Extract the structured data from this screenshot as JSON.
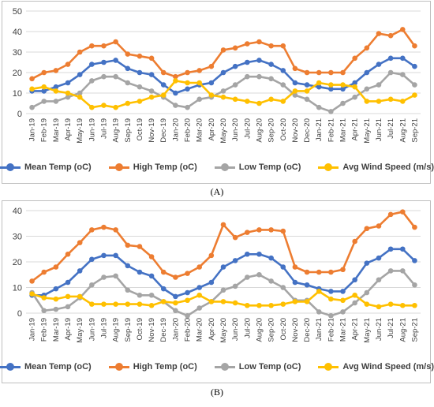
{
  "chart_data": [
    {
      "type": "line",
      "caption": "(A)",
      "categories": [
        "Jan-19",
        "Feb-19",
        "Mar-19",
        "Apr-19",
        "May-19",
        "Jun-19",
        "Jul-19",
        "Aug-19",
        "Sep-19",
        "Oct-19",
        "Nov-19",
        "Dec-19",
        "Jan-20",
        "Feb-20",
        "Mar-20",
        "Apr-20",
        "May-20",
        "Jun-20",
        "Jul-20",
        "Aug-20",
        "Sep-20",
        "Oct-20",
        "Nov-20",
        "Dec-20",
        "Jan-21",
        "Feb-21",
        "Mar-21",
        "Apr-21",
        "May-21",
        "Jun-21",
        "Jul-21",
        "Aug-21",
        "Sep-21"
      ],
      "ylim": [
        0,
        50
      ],
      "yticks": [
        0,
        10,
        20,
        30,
        40,
        50
      ],
      "grid": true,
      "legend_position": "bottom",
      "series": [
        {
          "name": "Mean Temp (oC)",
          "color": "#4472C4",
          "values": [
            11,
            11,
            13,
            15,
            19,
            24,
            25,
            26,
            22,
            20,
            19,
            14,
            10,
            12,
            14,
            15,
            20,
            23,
            25,
            26,
            24,
            21,
            15,
            14,
            13,
            12,
            12,
            15,
            20,
            24,
            27,
            27,
            23
          ]
        },
        {
          "name": "High Temp (oC)",
          "color": "#ED7D31",
          "values": [
            17,
            20,
            21,
            24,
            30,
            33,
            33,
            35,
            29,
            28,
            27,
            20,
            18,
            20,
            21,
            23,
            31,
            32,
            34,
            35,
            33,
            33,
            22,
            20,
            20,
            20,
            20,
            27,
            32,
            39,
            38,
            41,
            33
          ]
        },
        {
          "name": "Low Temp (oC)",
          "color": "#A5A5A5",
          "values": [
            3,
            6,
            6,
            8,
            10,
            16,
            18,
            18,
            15,
            13,
            11,
            8,
            4,
            3,
            7,
            8,
            11,
            14,
            18,
            18,
            17,
            14,
            9,
            7,
            3,
            1,
            5,
            8,
            12,
            14,
            20,
            19,
            14
          ]
        },
        {
          "name": "Avg Wind Speed (m/s)",
          "color": "#FFC000",
          "values": [
            12,
            13,
            11,
            10,
            8,
            3,
            4,
            3,
            5,
            6,
            8,
            9,
            16,
            15,
            15,
            9,
            8,
            7,
            6,
            5,
            7,
            6,
            11,
            11,
            15,
            14,
            14,
            13,
            6,
            6,
            7,
            6,
            9
          ]
        }
      ]
    },
    {
      "type": "line",
      "caption": "(B)",
      "categories": [
        "Jan-19",
        "Feb-19",
        "Mar-19",
        "Apr-19",
        "May-19",
        "Jun-19",
        "Jul-19",
        "Aug-19",
        "Sep-19",
        "Oct-19",
        "Nov-19",
        "Dec-19",
        "Jan-20",
        "Feb-20",
        "Mar-20",
        "Apr-20",
        "May-20",
        "Jun-20",
        "Jul-20",
        "Aug-20",
        "Sep-20",
        "Oct-20",
        "Nov-20",
        "Dec-20",
        "Jan-21",
        "Feb-21",
        "Mar-21",
        "Apr-21",
        "May-21",
        "Jun-21",
        "Jul-21",
        "Aug-21",
        "Sep-21"
      ],
      "ylim": [
        0,
        40
      ],
      "yticks": [
        0,
        10,
        20,
        30,
        40
      ],
      "grid": true,
      "legend_position": "bottom",
      "series": [
        {
          "name": "Mean Temp (oC)",
          "color": "#4472C4",
          "values": [
            7,
            7,
            9.5,
            12,
            16.5,
            21,
            22.5,
            22.5,
            18.5,
            16,
            14.5,
            9.5,
            6.5,
            8,
            10,
            12,
            18,
            20.5,
            23,
            23,
            21.5,
            18,
            12,
            11,
            9.5,
            8.5,
            8.5,
            13,
            19.5,
            21.5,
            25,
            25,
            20.5
          ]
        },
        {
          "name": "High Temp (oC)",
          "color": "#ED7D31",
          "values": [
            12.5,
            16,
            18,
            23,
            27.5,
            32.5,
            33.5,
            32.5,
            26.5,
            26,
            22,
            16,
            14,
            15.5,
            18,
            22.5,
            34.5,
            29.5,
            31.5,
            32.5,
            32.5,
            32,
            18,
            16,
            16,
            16,
            17,
            28,
            33,
            34,
            38.5,
            39.5,
            33.5
          ]
        },
        {
          "name": "Low Temp (oC)",
          "color": "#A5A5A5",
          "values": [
            8,
            1,
            1.5,
            2.5,
            6,
            11,
            14,
            14.5,
            9,
            7,
            7,
            4.5,
            1,
            -1,
            2,
            4.5,
            9,
            10.5,
            14,
            15,
            12.5,
            10,
            5,
            5,
            0.5,
            -1,
            0.5,
            4,
            8,
            13,
            16.5,
            16.5,
            11
          ]
        },
        {
          "name": "Avg Wind Speed (m/s)",
          "color": "#FFC000",
          "values": [
            7.5,
            6,
            5.5,
            6.5,
            6.5,
            3.5,
            3.5,
            3.5,
            3.5,
            3.5,
            3,
            4.5,
            4,
            5,
            7,
            4.5,
            4.5,
            4,
            3,
            3,
            3,
            3.5,
            4.5,
            4.5,
            8.5,
            5.5,
            5,
            7,
            3.5,
            2.5,
            3.5,
            3,
            3
          ]
        }
      ]
    }
  ]
}
